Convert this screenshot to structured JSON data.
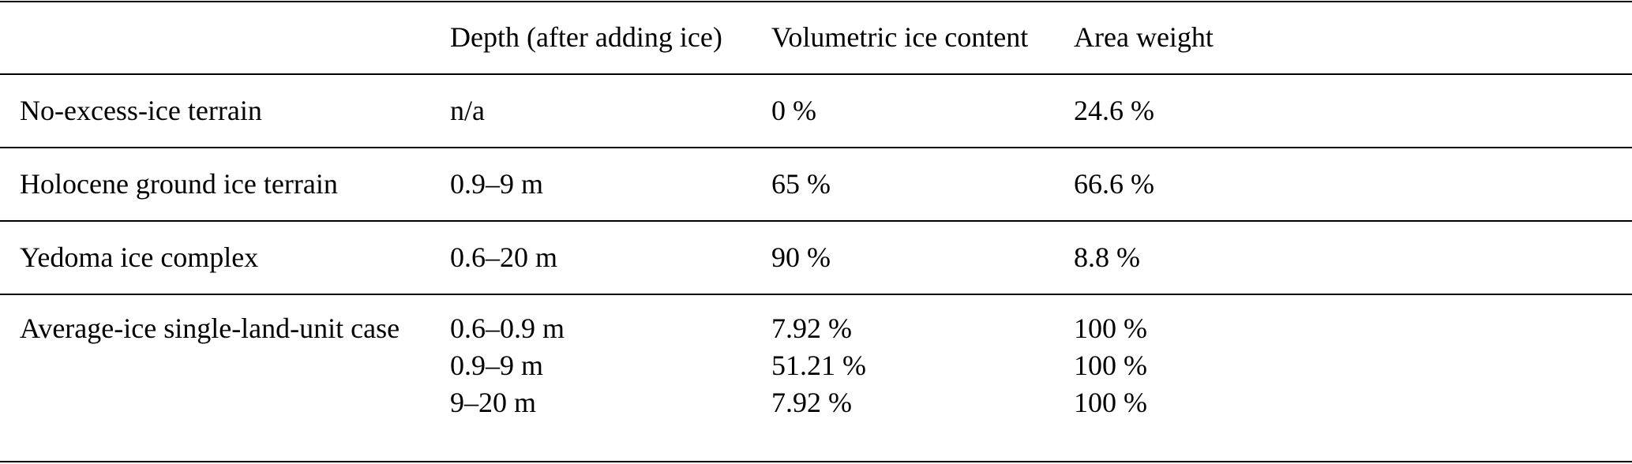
{
  "table": {
    "headers": [
      "",
      "Depth (after adding ice)",
      "Volumetric ice content",
      "Area weight"
    ],
    "rows": [
      {
        "name": "No-excess-ice terrain",
        "depth": [
          "n/a"
        ],
        "ice": [
          "0 %"
        ],
        "weight": [
          "24.6 %"
        ]
      },
      {
        "name": "Holocene ground ice terrain",
        "depth": [
          "0.9–9 m"
        ],
        "ice": [
          "65 %"
        ],
        "weight": [
          "66.6 %"
        ]
      },
      {
        "name": "Yedoma ice complex",
        "depth": [
          "0.6–20 m"
        ],
        "ice": [
          "90 %"
        ],
        "weight": [
          "8.8 %"
        ]
      },
      {
        "name": "Average-ice single-land-unit case",
        "depth": [
          "0.6–0.9 m",
          "0.9–9 m",
          "9–20 m"
        ],
        "ice": [
          "7.92 %",
          "51.21 %",
          "7.92 %"
        ],
        "weight": [
          "100 %",
          "100 %",
          "100 %"
        ]
      }
    ]
  }
}
